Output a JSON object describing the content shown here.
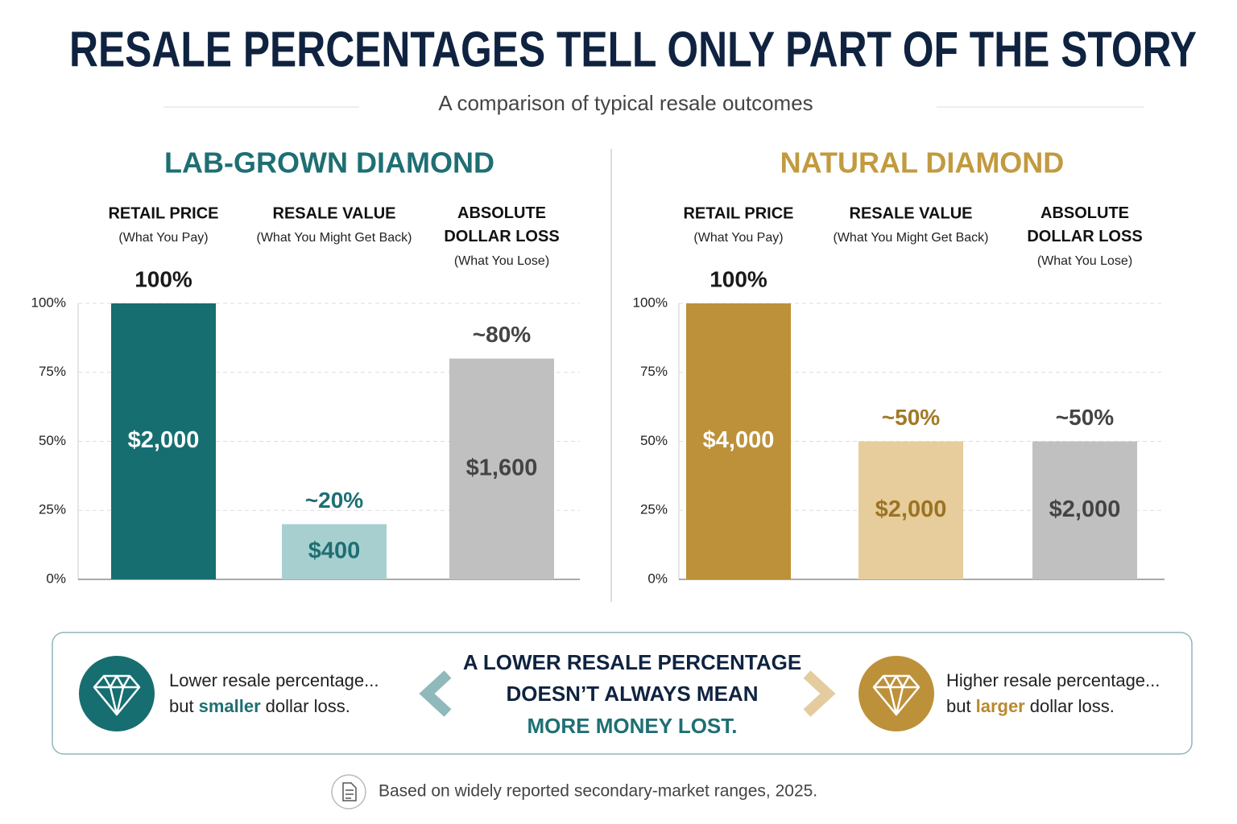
{
  "title": "RESALE PERCENTAGES TELL ONLY PART OF THE STORY",
  "subtitle": "A comparison of typical resale outcomes",
  "chart_data": [
    {
      "type": "bar",
      "title": "LAB-GROWN DIAMOND",
      "title_color": "#1e6f73",
      "categories": [
        "RETAIL PRICE",
        "RESALE VALUE",
        "ABSOLUTE DOLLAR LOSS"
      ],
      "category_notes": [
        "(What You Pay)",
        "(What You Might Get Back)",
        "(What You Lose)"
      ],
      "values": [
        100,
        20,
        80
      ],
      "value_labels": [
        "100%",
        "~20%",
        "~80%"
      ],
      "amount_labels": [
        "$2,000",
        "$400",
        "$1,600"
      ],
      "colors": [
        "#166e70",
        "#a8cfd0",
        "#c0c0c0"
      ],
      "ylim": [
        0,
        100
      ],
      "yticks": [
        {
          "value": 0,
          "label": "0%"
        },
        {
          "value": 25,
          "label": "25%"
        },
        {
          "value": 50,
          "label": "50%"
        },
        {
          "value": 75,
          "label": "75%"
        },
        {
          "value": 100,
          "label": "100%"
        }
      ],
      "grid": true
    },
    {
      "type": "bar",
      "title": "NATURAL DIAMOND",
      "title_color": "#c29a3f",
      "categories": [
        "RETAIL PRICE",
        "RESALE VALUE",
        "ABSOLUTE DOLLAR LOSS"
      ],
      "category_notes": [
        "(What You Pay)",
        "(What You Might Get Back)",
        "(What You Lose)"
      ],
      "values": [
        100,
        50,
        50
      ],
      "value_labels": [
        "100%",
        "~50%",
        "~50%"
      ],
      "amount_labels": [
        "$4,000",
        "$2,000",
        "$2,000"
      ],
      "colors": [
        "#bd913a",
        "#e6cd9b",
        "#c0c0c0"
      ],
      "ylim": [
        0,
        100
      ],
      "yticks": [
        {
          "value": 0,
          "label": "0%"
        },
        {
          "value": 25,
          "label": "25%"
        },
        {
          "value": 50,
          "label": "50%"
        },
        {
          "value": 75,
          "label": "75%"
        },
        {
          "value": 100,
          "label": "100%"
        }
      ],
      "grid": true
    }
  ],
  "callout": {
    "left": {
      "line1": "Lower resale percentage...",
      "line2": [
        "but",
        "smaller",
        "dollar loss."
      ]
    },
    "message": [
      "A LOWER RESALE PERCENTAGE",
      "DOESN’T ALWAYS MEAN",
      "MORE MONEY LOST."
    ],
    "right": {
      "line1": "Higher resale percentage...",
      "line2": [
        "but",
        "larger",
        "dollar loss."
      ]
    }
  },
  "footnote": "Based on widely reported secondary-market ranges, 2025."
}
